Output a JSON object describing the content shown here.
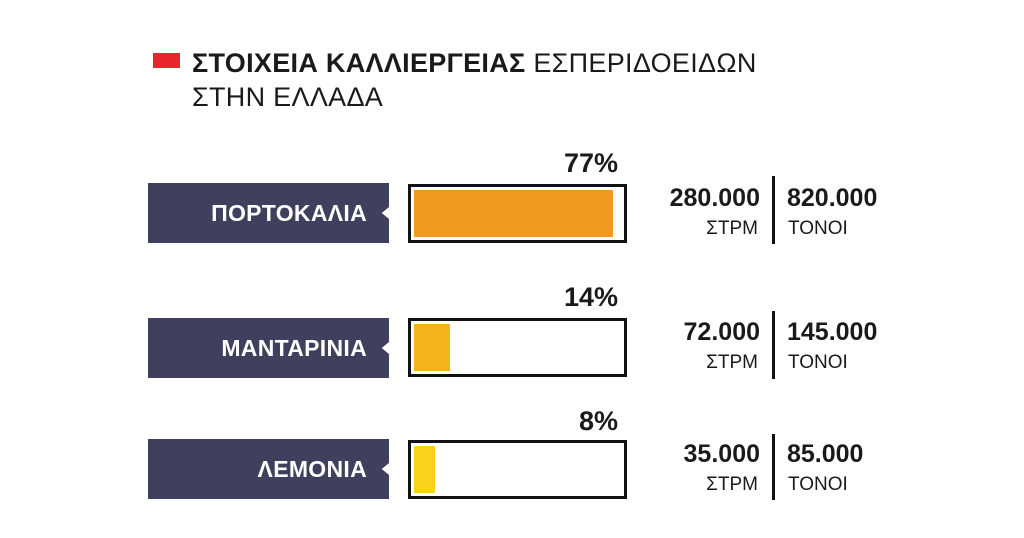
{
  "title": {
    "bold": "ΣΤΟΙΧΕΙΑ ΚΑΛΛΙΕΡΓΕΙΑΣ",
    "regular": "ΕΣΠΕΡΙΔΟΕΙΔΩΝ",
    "line2": "ΣΤΗΝ ΕΛΛΑΔΑ",
    "marker_color": "#e8262b"
  },
  "colors": {
    "label_bg": "#3f3f5e",
    "bar_outline": "#111111"
  },
  "chart_data": {
    "type": "bar",
    "orientation": "horizontal",
    "title": "ΣΤΟΙΧΕΙΑ ΚΑΛΛΙΕΡΓΕΙΑΣ ΕΣΠΕΡΙΔΟΕΙΔΩΝ ΣΤΗΝ ΕΛΛΑΔΑ",
    "categories": [
      "ΠΟΡΤΟΚΑΛΙΑ",
      "ΜΑΝΤΑΡΙΝΙΑ",
      "ΛΕΜΟΝΙΑ"
    ],
    "values": [
      77,
      14,
      8
    ],
    "value_labels": [
      "77%",
      "14%",
      "8%"
    ],
    "ylim": [
      0,
      80
    ],
    "bar_colors": [
      "#f19a1f",
      "#f4b21b",
      "#fad21c"
    ],
    "area": {
      "values": [
        "280.000",
        "72.000",
        "35.000"
      ],
      "unit": "ΣΤΡΜ"
    },
    "production": {
      "values": [
        "820.000",
        "145.000",
        "85.000"
      ],
      "unit": "ΤΟΝΟΙ"
    }
  }
}
